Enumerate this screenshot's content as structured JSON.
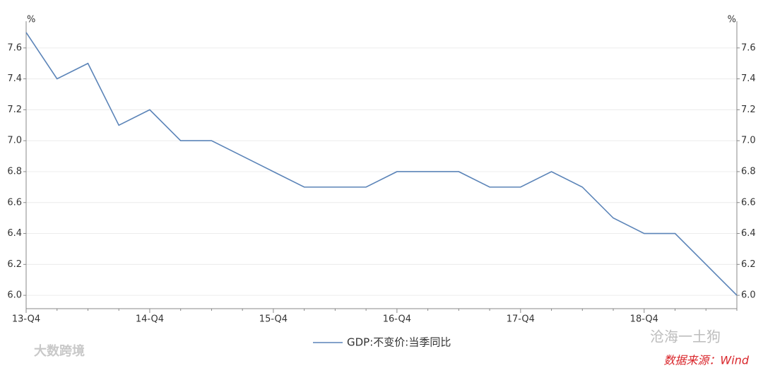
{
  "chart_data": {
    "type": "line",
    "y_unit_left": "%",
    "y_unit_right": "%",
    "categories": [
      "13-Q4",
      null,
      null,
      null,
      "14-Q4",
      null,
      null,
      null,
      "15-Q4",
      null,
      null,
      null,
      "16-Q4",
      null,
      null,
      null,
      "17-Q4",
      null,
      null,
      null,
      "18-Q4",
      null,
      null,
      null
    ],
    "series": [
      {
        "name": "GDP:不变价:当季同比",
        "color": "#5b84b8",
        "values": [
          7.7,
          7.4,
          7.5,
          7.1,
          7.2,
          7.0,
          7.0,
          6.9,
          6.8,
          6.7,
          6.7,
          6.7,
          6.8,
          6.8,
          6.8,
          6.7,
          6.7,
          6.8,
          6.7,
          6.5,
          6.4,
          6.4,
          6.2,
          6.0
        ]
      }
    ],
    "ylim": [
      5.9,
      7.75
    ],
    "yticks": [
      {
        "value": 6,
        "label": "6.0"
      },
      6.2,
      6.4,
      6.6,
      6.8,
      {
        "value": 7,
        "label": "7.0"
      },
      7.2,
      7.4,
      7.6
    ],
    "y2lim": [
      5.9,
      7.75
    ],
    "y2ticks": [
      {
        "value": 6,
        "label": "6.0"
      },
      6.2,
      6.4,
      6.6,
      6.8,
      {
        "value": 7,
        "label": "7.0"
      },
      7.2,
      7.4,
      7.6
    ],
    "grid": true,
    "legend": "bottom",
    "watermark_left": "大数跨境",
    "watermark_right": "沧海一土狗",
    "source": "数据来源：Wind"
  }
}
